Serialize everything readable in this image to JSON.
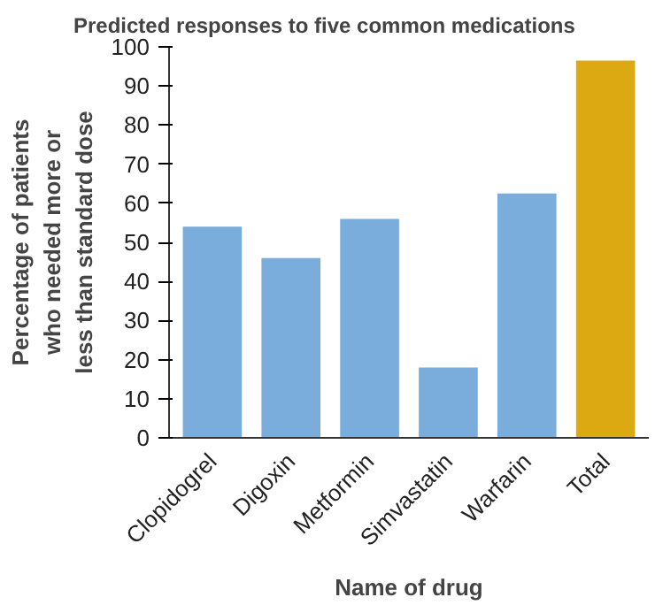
{
  "chart_data": {
    "type": "bar",
    "title": "Predicted responses to five common medications",
    "xlabel": "Name of drug",
    "ylabel": "Percentage of patients\nwho needed more or\nless than standard dose",
    "categories": [
      "Clopidogrel",
      "Digoxin",
      "Metformin",
      "Simvastatin",
      "Warfarin",
      "Total"
    ],
    "values": [
      54,
      46,
      56,
      18,
      62.5,
      96.5
    ],
    "colors": [
      "#7aaddb",
      "#7aaddb",
      "#7aaddb",
      "#7aaddb",
      "#7aaddb",
      "#dca913"
    ],
    "ylim": [
      0,
      100
    ],
    "yticks": [
      0,
      10,
      20,
      30,
      40,
      50,
      60,
      70,
      80,
      90,
      100
    ],
    "grid": false
  }
}
